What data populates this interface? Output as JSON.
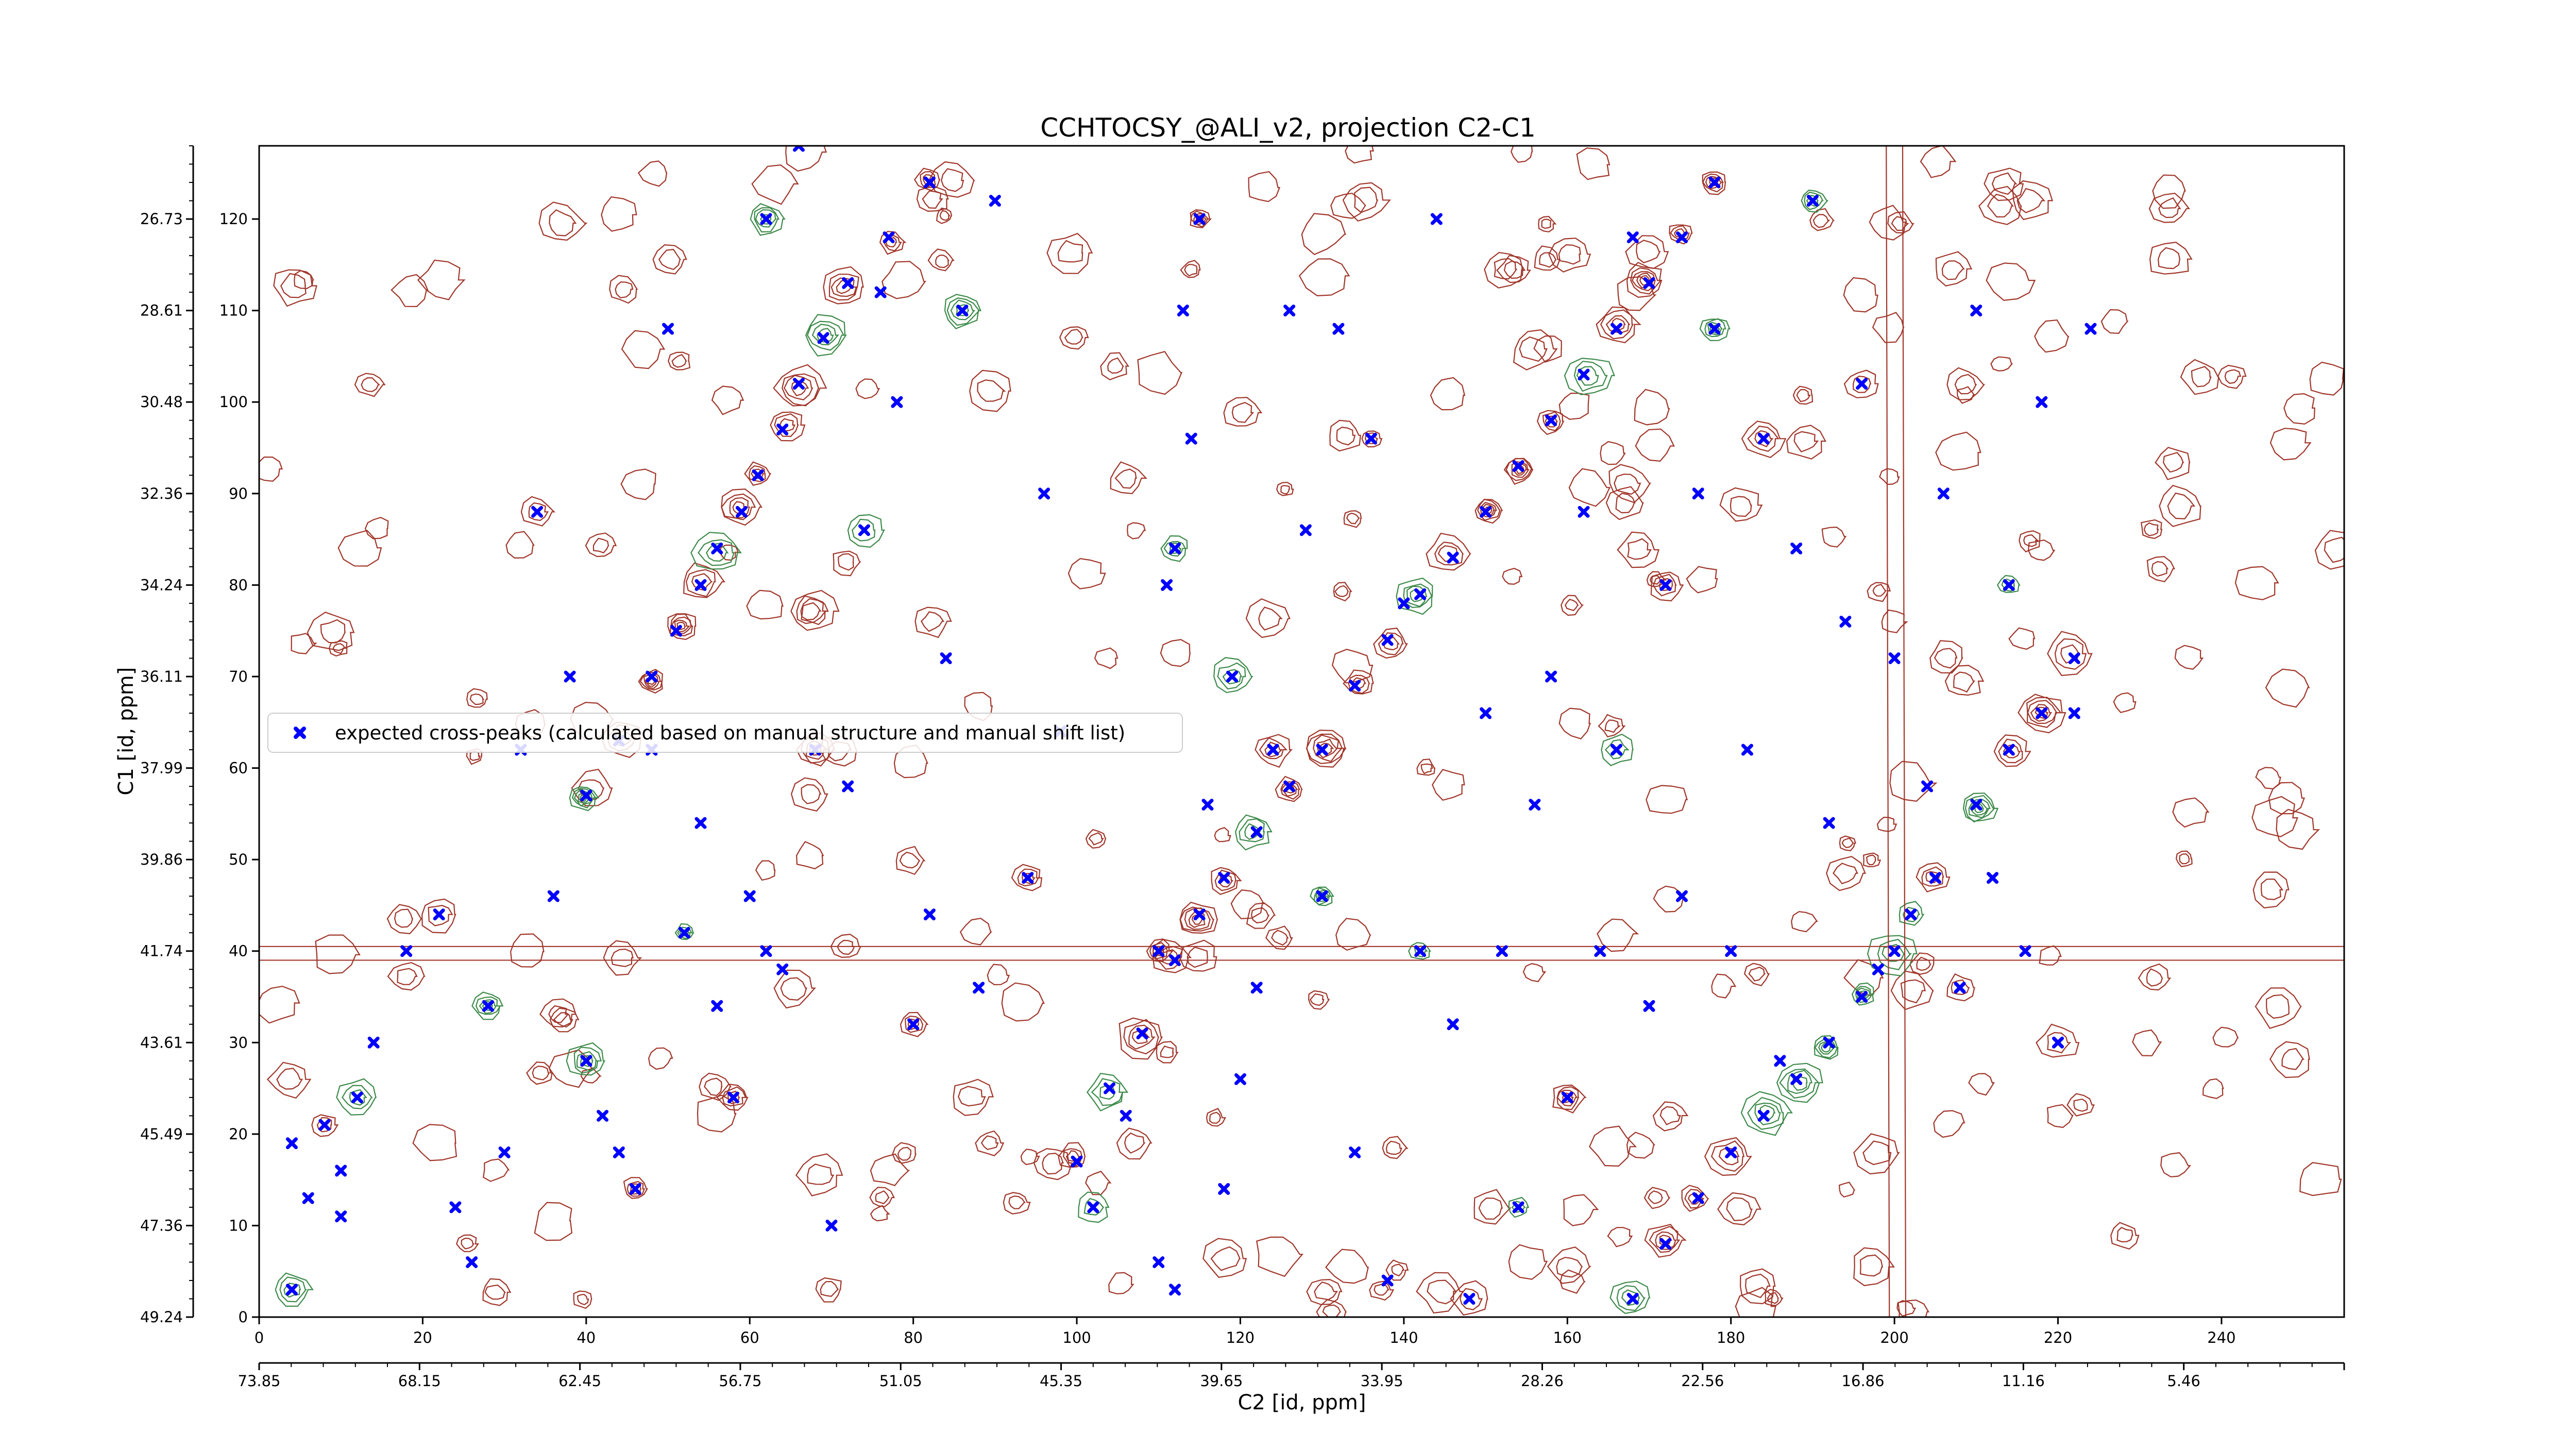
{
  "chart_data": {
    "type": "scatter",
    "title": "CCHTOCSY_@ALI_v2, projection C2-C1",
    "xlabel": "C2 [id, ppm]",
    "ylabel": "C1 [id, ppm]",
    "x_index_ticks": [
      "0",
      "20",
      "40",
      "60",
      "80",
      "100",
      "120",
      "140",
      "160",
      "180",
      "200",
      "220",
      "240"
    ],
    "x_ppm_ticks": [
      "73.85",
      "68.15",
      "62.45",
      "56.75",
      "51.05",
      "45.35",
      "39.65",
      "33.95",
      "28.26",
      "22.56",
      "16.86",
      "11.16",
      "5.46"
    ],
    "y_index_ticks": [
      "0",
      "10",
      "20",
      "30",
      "40",
      "50",
      "60",
      "70",
      "80",
      "90",
      "100",
      "110",
      "120"
    ],
    "y_ppm_ticks": [
      "49.24",
      "47.36",
      "45.49",
      "43.61",
      "41.74",
      "39.86",
      "37.99",
      "36.11",
      "34.24",
      "32.36",
      "30.48",
      "28.61",
      "26.73"
    ],
    "xlim": [
      0,
      255
    ],
    "ylim": [
      0,
      128
    ],
    "legend": {
      "placement": "center-left",
      "entries": [
        "expected cross-peaks (calculated based on manual structure and manual shift list)"
      ]
    },
    "colors": {
      "points": "#0000ff",
      "contour_positive": "#a0362a",
      "contour_negative": "#3d8a4a",
      "axes": "#000000"
    },
    "series": [
      {
        "name": "expected cross-peaks (calculated based on manual structure and manual shift list)",
        "marker": "x",
        "diagonal": [
          [
            40,
            57
          ],
          [
            44,
            63
          ],
          [
            48,
            70
          ],
          [
            51,
            75
          ],
          [
            54,
            80
          ],
          [
            56,
            84
          ],
          [
            59,
            88
          ],
          [
            61,
            92
          ],
          [
            64,
            97
          ],
          [
            66,
            102
          ],
          [
            69,
            107
          ],
          [
            72,
            113
          ],
          [
            77,
            118
          ],
          [
            82,
            124
          ],
          [
            100,
            17
          ],
          [
            104,
            25
          ],
          [
            108,
            31
          ],
          [
            112,
            39
          ],
          [
            115,
            44
          ],
          [
            118,
            48
          ],
          [
            122,
            53
          ],
          [
            126,
            58
          ],
          [
            130,
            62
          ],
          [
            134,
            69
          ],
          [
            138,
            74
          ],
          [
            142,
            79
          ],
          [
            146,
            83
          ],
          [
            150,
            88
          ],
          [
            154,
            93
          ],
          [
            158,
            98
          ],
          [
            162,
            103
          ],
          [
            166,
            108
          ],
          [
            170,
            113
          ],
          [
            174,
            118
          ],
          [
            178,
            124
          ],
          [
            168,
            2
          ],
          [
            172,
            8
          ],
          [
            176,
            13
          ],
          [
            180,
            18
          ],
          [
            184,
            22
          ],
          [
            188,
            26
          ],
          [
            192,
            30
          ],
          [
            196,
            35
          ],
          [
            200,
            40
          ],
          [
            205,
            48
          ],
          [
            210,
            56
          ],
          [
            214,
            62
          ],
          [
            218,
            66
          ],
          [
            222,
            72
          ]
        ],
        "scattered": [
          [
            4,
            3
          ],
          [
            4,
            19
          ],
          [
            6,
            13
          ],
          [
            8,
            21
          ],
          [
            10,
            11
          ],
          [
            10,
            16
          ],
          [
            12,
            24
          ],
          [
            14,
            30
          ],
          [
            18,
            40
          ],
          [
            22,
            44
          ],
          [
            24,
            12
          ],
          [
            26,
            6
          ],
          [
            28,
            34
          ],
          [
            30,
            18
          ],
          [
            32,
            62
          ],
          [
            34,
            88
          ],
          [
            36,
            46
          ],
          [
            38,
            70
          ],
          [
            40,
            28
          ],
          [
            42,
            22
          ],
          [
            44,
            18
          ],
          [
            46,
            14
          ],
          [
            48,
            62
          ],
          [
            50,
            108
          ],
          [
            52,
            42
          ],
          [
            54,
            54
          ],
          [
            56,
            34
          ],
          [
            58,
            24
          ],
          [
            60,
            46
          ],
          [
            62,
            40
          ],
          [
            62,
            120
          ],
          [
            64,
            38
          ],
          [
            66,
            128
          ],
          [
            68,
            62
          ],
          [
            70,
            10
          ],
          [
            72,
            58
          ],
          [
            74,
            86
          ],
          [
            76,
            112
          ],
          [
            78,
            100
          ],
          [
            80,
            32
          ],
          [
            82,
            44
          ],
          [
            84,
            72
          ],
          [
            86,
            110
          ],
          [
            88,
            36
          ],
          [
            90,
            122
          ],
          [
            94,
            48
          ],
          [
            96,
            90
          ],
          [
            98,
            64
          ],
          [
            102,
            12
          ],
          [
            106,
            22
          ],
          [
            110,
            6
          ],
          [
            110,
            40
          ],
          [
            111,
            80
          ],
          [
            112,
            3
          ],
          [
            112,
            84
          ],
          [
            113,
            110
          ],
          [
            114,
            96
          ],
          [
            115,
            120
          ],
          [
            116,
            56
          ],
          [
            118,
            14
          ],
          [
            119,
            70
          ],
          [
            120,
            26
          ],
          [
            122,
            36
          ],
          [
            124,
            62
          ],
          [
            126,
            110
          ],
          [
            128,
            86
          ],
          [
            130,
            46
          ],
          [
            132,
            108
          ],
          [
            134,
            18
          ],
          [
            136,
            96
          ],
          [
            138,
            4
          ],
          [
            140,
            78
          ],
          [
            142,
            40
          ],
          [
            144,
            120
          ],
          [
            146,
            32
          ],
          [
            148,
            2
          ],
          [
            150,
            66
          ],
          [
            152,
            40
          ],
          [
            154,
            12
          ],
          [
            156,
            56
          ],
          [
            158,
            70
          ],
          [
            160,
            24
          ],
          [
            162,
            88
          ],
          [
            164,
            40
          ],
          [
            166,
            62
          ],
          [
            168,
            118
          ],
          [
            170,
            34
          ],
          [
            172,
            80
          ],
          [
            174,
            46
          ],
          [
            176,
            90
          ],
          [
            178,
            108
          ],
          [
            180,
            40
          ],
          [
            182,
            62
          ],
          [
            184,
            96
          ],
          [
            186,
            28
          ],
          [
            188,
            84
          ],
          [
            190,
            122
          ],
          [
            192,
            54
          ],
          [
            194,
            76
          ],
          [
            196,
            102
          ],
          [
            198,
            38
          ],
          [
            200,
            72
          ],
          [
            202,
            44
          ],
          [
            204,
            58
          ],
          [
            206,
            90
          ],
          [
            208,
            36
          ],
          [
            210,
            110
          ],
          [
            212,
            48
          ],
          [
            214,
            80
          ],
          [
            216,
            40
          ],
          [
            218,
            100
          ],
          [
            220,
            30
          ],
          [
            222,
            66
          ],
          [
            224,
            108
          ]
        ]
      }
    ]
  }
}
